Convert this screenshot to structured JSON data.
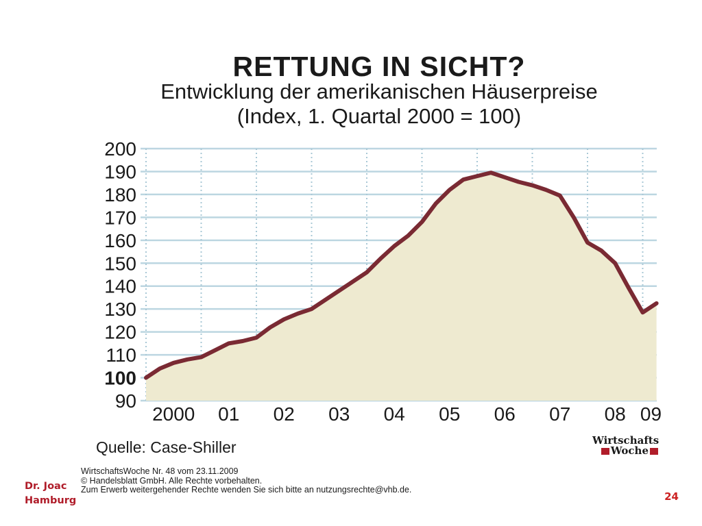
{
  "header": {
    "title": "RETTUNG IN SICHT?",
    "subtitle_line1": "Entwicklung der amerikanischen Häuserpreise",
    "subtitle_line2": "(Index, 1. Quartal 2000 = 100)"
  },
  "chart_data": {
    "type": "area",
    "title": "RETTUNG IN SICHT?",
    "subtitle": "Entwicklung der amerikanischen Häuserpreise (Index, 1. Quartal 2000 = 100)",
    "xlabel": "",
    "ylabel": "",
    "ylim": [
      90,
      200
    ],
    "y_ticks": [
      90,
      100,
      110,
      120,
      130,
      140,
      150,
      160,
      170,
      180,
      190,
      200
    ],
    "y_tick_bold": 100,
    "x_tick_labels": [
      "2000",
      "01",
      "02",
      "03",
      "04",
      "05",
      "06",
      "07",
      "08",
      "09"
    ],
    "x": [
      2000.0,
      2000.25,
      2000.5,
      2000.75,
      2001.0,
      2001.25,
      2001.5,
      2001.75,
      2002.0,
      2002.25,
      2002.5,
      2002.75,
      2003.0,
      2003.25,
      2003.5,
      2003.75,
      2004.0,
      2004.25,
      2004.5,
      2004.75,
      2005.0,
      2005.25,
      2005.5,
      2005.75,
      2006.0,
      2006.25,
      2006.5,
      2006.75,
      2007.0,
      2007.25,
      2007.5,
      2007.75,
      2008.0,
      2008.25,
      2008.5,
      2008.75,
      2009.0,
      2009.25
    ],
    "values": [
      100,
      104,
      106.5,
      108,
      109,
      112,
      115,
      116,
      117.5,
      122,
      125.5,
      128,
      130,
      134,
      138,
      142,
      146,
      152,
      157.5,
      162,
      168,
      176,
      182,
      186.5,
      188,
      189.5,
      187.5,
      185.5,
      184,
      182,
      179.5,
      170,
      159,
      155.5,
      150,
      139,
      128.5,
      132.5
    ],
    "grid": true,
    "colors": {
      "line": "#7a2a33",
      "fill": "#eeead0",
      "grid": "#bcd6e1",
      "vgrid": "#a9c8d6"
    }
  },
  "source": "Quelle: Case-Shiller",
  "logo": {
    "line1": "Wirtschafts",
    "line2": "Woche"
  },
  "copyright": {
    "line1": "WirtschaftsWoche Nr. 48 vom 23.11.2009",
    "line2": "© Handelsblatt GmbH. Alle Rechte vorbehalten.",
    "line3": "Zum Erwerb weitergehender Rechte wenden Sie sich bitte an nutzungsrechte@vhb.de."
  },
  "footer": {
    "author_line1": "Dr. Joac",
    "author_line2": "Hamburg",
    "page_number": "24"
  }
}
